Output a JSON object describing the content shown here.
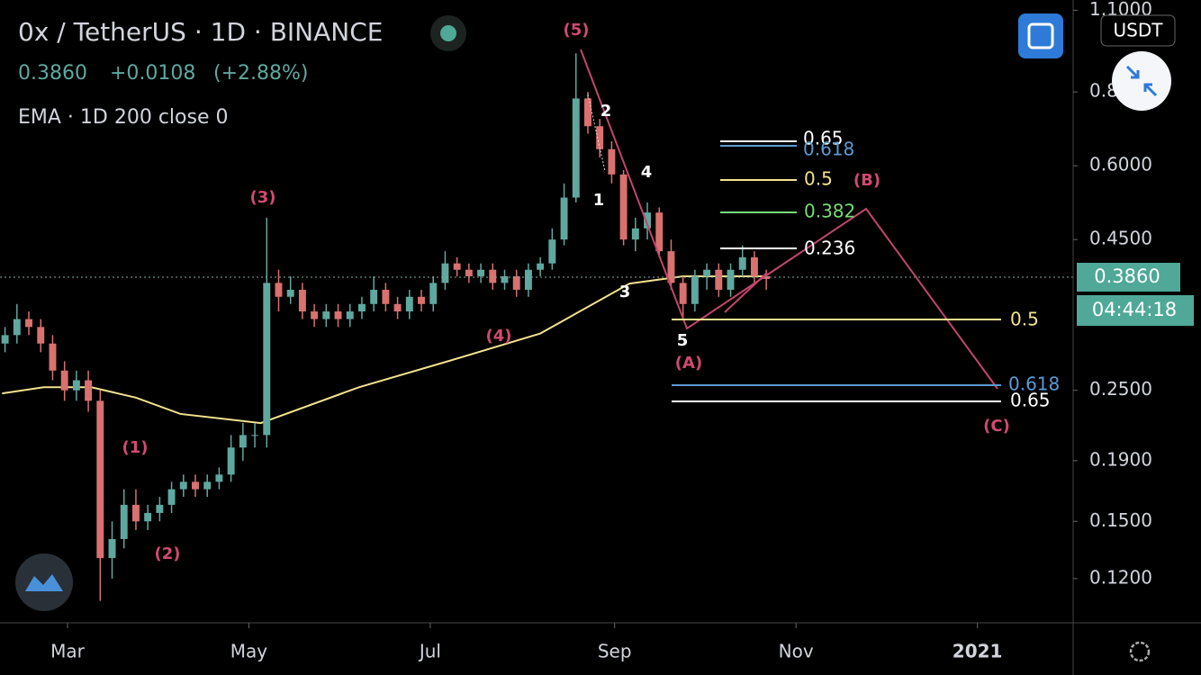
{
  "header": {
    "symbol": "0x / TetherUS · 1D · BINANCE",
    "price": "0.3860",
    "change": "+0.0108",
    "change_pct": "(+2.88%)",
    "indicator": "EMA · 1D 200 close 0",
    "currency": "USDT",
    "last_price": "0.3860",
    "countdown": "04:44:18"
  },
  "chart_data": {
    "type": "candlestick",
    "log_scale": true,
    "up_color": "#5fa8a0",
    "down_color": "#d9716f",
    "xlim": [
      -22.7,
      338.2
    ],
    "xticks": [
      {
        "value": 0,
        "label": "Mar"
      },
      {
        "value": 61,
        "label": "May"
      },
      {
        "value": 122,
        "label": "Jul"
      },
      {
        "value": 184,
        "label": "Sep"
      },
      {
        "value": 245,
        "label": "Nov"
      },
      {
        "value": 306,
        "label": "2021"
      }
    ],
    "ylim": [
      0.101,
      1.145
    ],
    "yticks": [
      {
        "value": 1.1,
        "label": "1.1000"
      },
      {
        "value": 0.8,
        "label": "0.8000"
      },
      {
        "value": 0.6,
        "label": "0.6000"
      },
      {
        "value": 0.45,
        "label": "0.4500"
      },
      {
        "value": 0.25,
        "label": "0.2500"
      },
      {
        "value": 0.19,
        "label": "0.1900"
      },
      {
        "value": 0.15,
        "label": "0.1500"
      },
      {
        "value": 0.12,
        "label": "0.1200"
      }
    ],
    "x": [
      -21,
      -17,
      -13,
      -9,
      -5,
      -1,
      3,
      7,
      11,
      15,
      19,
      23,
      27,
      31,
      35,
      39,
      43,
      47,
      51,
      55,
      59,
      63,
      67,
      71,
      75,
      79,
      83,
      87,
      91,
      95,
      99,
      103,
      107,
      111,
      115,
      119,
      123,
      127,
      131,
      135,
      139,
      143,
      147,
      151,
      155,
      159,
      163,
      167,
      171,
      175,
      179,
      183,
      187,
      191,
      195,
      199,
      203,
      207,
      211,
      215,
      219,
      223,
      227,
      231,
      235
    ],
    "open": [
      0.3,
      0.31,
      0.33,
      0.32,
      0.3,
      0.27,
      0.25,
      0.26,
      0.24,
      0.13,
      0.14,
      0.16,
      0.15,
      0.155,
      0.16,
      0.17,
      0.175,
      0.17,
      0.175,
      0.18,
      0.2,
      0.21,
      0.21,
      0.38,
      0.36,
      0.37,
      0.34,
      0.33,
      0.34,
      0.33,
      0.34,
      0.35,
      0.37,
      0.35,
      0.34,
      0.36,
      0.35,
      0.38,
      0.41,
      0.4,
      0.39,
      0.4,
      0.38,
      0.39,
      0.37,
      0.4,
      0.41,
      0.45,
      0.53,
      0.78,
      0.7,
      0.64,
      0.58,
      0.45,
      0.47,
      0.5,
      0.43,
      0.38,
      0.35,
      0.39,
      0.4,
      0.37,
      0.4,
      0.42,
      0.39
    ],
    "high": [
      0.32,
      0.35,
      0.34,
      0.33,
      0.31,
      0.28,
      0.27,
      0.27,
      0.25,
      0.15,
      0.17,
      0.17,
      0.16,
      0.165,
      0.175,
      0.18,
      0.18,
      0.18,
      0.185,
      0.21,
      0.22,
      0.22,
      0.49,
      0.4,
      0.39,
      0.38,
      0.35,
      0.35,
      0.35,
      0.35,
      0.36,
      0.39,
      0.38,
      0.36,
      0.37,
      0.37,
      0.39,
      0.43,
      0.42,
      0.41,
      0.41,
      0.41,
      0.4,
      0.4,
      0.41,
      0.42,
      0.47,
      0.56,
      0.93,
      0.8,
      0.72,
      0.66,
      0.59,
      0.49,
      0.52,
      0.51,
      0.45,
      0.39,
      0.4,
      0.41,
      0.41,
      0.41,
      0.44,
      0.43,
      0.4
    ],
    "low": [
      0.29,
      0.3,
      0.31,
      0.29,
      0.26,
      0.24,
      0.24,
      0.23,
      0.11,
      0.12,
      0.135,
      0.145,
      0.145,
      0.15,
      0.155,
      0.165,
      0.165,
      0.165,
      0.17,
      0.175,
      0.19,
      0.2,
      0.2,
      0.34,
      0.35,
      0.33,
      0.32,
      0.32,
      0.32,
      0.32,
      0.33,
      0.34,
      0.34,
      0.33,
      0.33,
      0.34,
      0.34,
      0.37,
      0.39,
      0.38,
      0.38,
      0.37,
      0.37,
      0.36,
      0.36,
      0.39,
      0.4,
      0.44,
      0.52,
      0.68,
      0.62,
      0.56,
      0.44,
      0.43,
      0.45,
      0.42,
      0.37,
      0.33,
      0.34,
      0.37,
      0.36,
      0.36,
      0.39,
      0.38,
      0.37
    ],
    "close": [
      0.31,
      0.33,
      0.32,
      0.3,
      0.27,
      0.25,
      0.26,
      0.24,
      0.13,
      0.14,
      0.16,
      0.15,
      0.155,
      0.16,
      0.17,
      0.175,
      0.17,
      0.175,
      0.18,
      0.2,
      0.21,
      0.21,
      0.38,
      0.36,
      0.37,
      0.34,
      0.33,
      0.34,
      0.33,
      0.34,
      0.35,
      0.37,
      0.35,
      0.34,
      0.36,
      0.35,
      0.38,
      0.41,
      0.4,
      0.39,
      0.4,
      0.38,
      0.39,
      0.37,
      0.4,
      0.41,
      0.45,
      0.53,
      0.78,
      0.7,
      0.64,
      0.58,
      0.45,
      0.47,
      0.5,
      0.43,
      0.38,
      0.35,
      0.39,
      0.4,
      0.37,
      0.4,
      0.42,
      0.39,
      0.386
    ],
    "ema": {
      "color": "#f3e28f",
      "x": [
        -22,
        -8,
        8,
        23,
        38,
        65,
        98,
        129,
        159,
        189,
        207,
        235
      ],
      "values": [
        0.247,
        0.253,
        0.253,
        0.243,
        0.228,
        0.22,
        0.253,
        0.281,
        0.312,
        0.379,
        0.39,
        0.39
      ]
    },
    "annotations": [
      "(5)",
      "(3)",
      "(1)",
      "(2)",
      "(4)",
      "(A)",
      "(B)",
      "(C)",
      "1",
      "2",
      "3",
      "4",
      "5",
      "0.65",
      "0.618",
      "0.5",
      "0.382",
      "0.236",
      "0.5",
      "0.618",
      "0.65"
    ]
  }
}
